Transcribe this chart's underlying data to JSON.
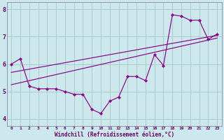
{
  "xlabel": "Windchill (Refroidissement éolien,°C)",
  "bg_color": "#cce8ec",
  "line_color": "#880088",
  "grid_color": "#aacccc",
  "x_values": [
    0,
    1,
    2,
    3,
    4,
    5,
    6,
    7,
    8,
    9,
    10,
    11,
    12,
    13,
    14,
    15,
    16,
    17,
    18,
    19,
    20,
    21,
    22,
    23
  ],
  "series1": [
    6.0,
    6.2,
    5.2,
    5.1,
    5.1,
    5.1,
    5.0,
    4.9,
    4.9,
    4.35,
    4.2,
    4.65,
    4.8,
    5.55,
    5.55,
    5.4,
    6.35,
    5.95,
    7.8,
    7.75,
    7.6,
    7.6,
    6.9,
    7.1
  ],
  "trend1_x": [
    0,
    23
  ],
  "trend1_y": [
    5.7,
    7.05
  ],
  "trend2_x": [
    0,
    23
  ],
  "trend2_y": [
    5.25,
    6.95
  ],
  "xlim": [
    -0.5,
    23.5
  ],
  "ylim": [
    3.75,
    8.25
  ],
  "yticks": [
    4,
    5,
    6,
    7,
    8
  ],
  "xticks": [
    0,
    1,
    2,
    3,
    4,
    5,
    6,
    7,
    8,
    9,
    10,
    11,
    12,
    13,
    14,
    15,
    16,
    17,
    18,
    19,
    20,
    21,
    22,
    23
  ],
  "tick_color": "#660066",
  "label_color": "#660066",
  "spine_color": "#8888aa"
}
